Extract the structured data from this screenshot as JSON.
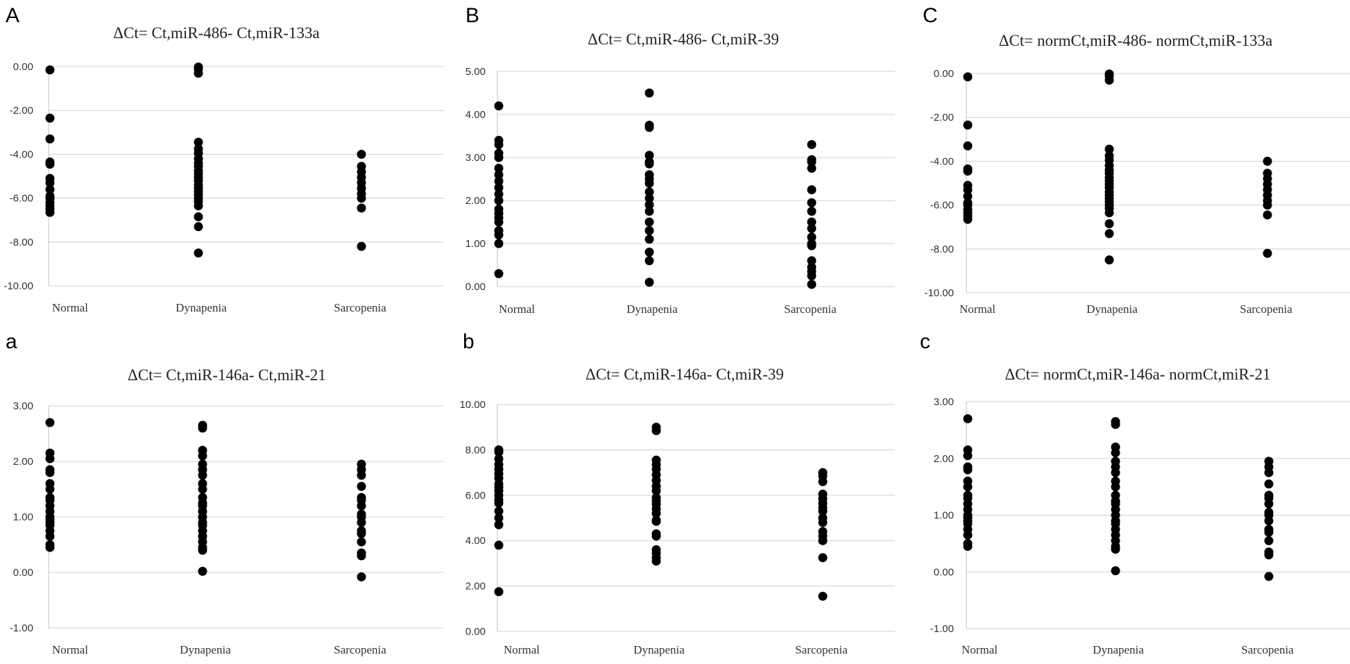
{
  "figure": {
    "panels_count": 6
  },
  "colors": {
    "marker": "#000000",
    "grid": "#d0d0d0",
    "axis": "#bfbfbf",
    "text": "#222222"
  },
  "chart_data": [
    {
      "letter": "A",
      "type": "scatter",
      "title": "ΔCt= Ct,miR-486- Ct,miR-133a",
      "categories": [
        "Normal",
        "Dynapenia",
        "Sarcopenia"
      ],
      "yticks": [
        "0.00",
        "-2.00",
        "-4.00",
        "-6.00",
        "-8.00",
        "-10.00"
      ],
      "ylim": [
        -10,
        0
      ],
      "grid": true,
      "series": [
        {
          "category": "Normal",
          "values": [
            -0.15,
            -2.35,
            -3.3,
            -4.35,
            -4.45,
            -5.1,
            -5.3,
            -5.6,
            -5.9,
            -6.0,
            -6.2,
            -6.35,
            -6.5,
            -6.65
          ]
        },
        {
          "category": "Dynapenia",
          "values": [
            -0.02,
            -0.12,
            -0.3,
            -3.45,
            -3.75,
            -3.95,
            -4.2,
            -4.4,
            -4.55,
            -4.75,
            -4.9,
            -5.05,
            -5.2,
            -5.4,
            -5.55,
            -5.7,
            -5.85,
            -6.0,
            -6.15,
            -6.35,
            -6.85,
            -7.3,
            -8.5
          ]
        },
        {
          "category": "Sarcopenia",
          "values": [
            -4.0,
            -4.55,
            -4.8,
            -5.05,
            -5.3,
            -5.55,
            -5.8,
            -6.0,
            -6.45,
            -8.2
          ]
        }
      ]
    },
    {
      "letter": "B",
      "type": "scatter",
      "title": "ΔCt= Ct,miR-486- Ct,miR-39",
      "categories": [
        "Normal",
        "Dynapenia",
        "Sarcopenia"
      ],
      "yticks": [
        "5.00",
        "4.00",
        "3.00",
        "2.00",
        "1.00",
        "0.00"
      ],
      "ylim": [
        0,
        5
      ],
      "grid": true,
      "series": [
        {
          "category": "Normal",
          "values": [
            4.2,
            3.4,
            3.3,
            3.1,
            3.0,
            2.75,
            2.6,
            2.45,
            2.3,
            2.15,
            2.0,
            1.8,
            1.7,
            1.6,
            1.5,
            1.3,
            1.2,
            1.0,
            0.3
          ]
        },
        {
          "category": "Dynapenia",
          "values": [
            4.5,
            3.75,
            3.7,
            3.05,
            2.9,
            2.85,
            2.6,
            2.5,
            2.4,
            2.2,
            2.05,
            1.9,
            1.75,
            1.5,
            1.3,
            1.1,
            0.8,
            0.6,
            0.1
          ]
        },
        {
          "category": "Sarcopenia",
          "values": [
            3.3,
            2.95,
            2.9,
            2.75,
            2.25,
            1.95,
            1.75,
            1.5,
            1.35,
            1.15,
            1.0,
            0.95,
            0.6,
            0.45,
            0.35,
            0.25,
            0.05
          ]
        }
      ]
    },
    {
      "letter": "C",
      "type": "scatter",
      "title": "ΔCt= normCt,miR-486- normCt,miR-133a",
      "categories": [
        "Normal",
        "Dynapenia",
        "Sarcopenia"
      ],
      "yticks": [
        "0.00",
        "-2.00",
        "-4.00",
        "-6.00",
        "-8.00",
        "-10.00"
      ],
      "ylim": [
        -10,
        0
      ],
      "grid": true,
      "series": [
        {
          "category": "Normal",
          "values": [
            -0.15,
            -2.35,
            -3.3,
            -4.35,
            -4.45,
            -5.1,
            -5.3,
            -5.6,
            -5.9,
            -6.0,
            -6.2,
            -6.35,
            -6.5,
            -6.65
          ]
        },
        {
          "category": "Dynapenia",
          "values": [
            -0.02,
            -0.12,
            -0.3,
            -3.45,
            -3.75,
            -3.95,
            -4.2,
            -4.4,
            -4.55,
            -4.75,
            -4.9,
            -5.05,
            -5.2,
            -5.4,
            -5.55,
            -5.7,
            -5.85,
            -6.0,
            -6.15,
            -6.35,
            -6.85,
            -7.3,
            -8.5
          ]
        },
        {
          "category": "Sarcopenia",
          "values": [
            -4.0,
            -4.55,
            -4.8,
            -5.05,
            -5.3,
            -5.55,
            -5.8,
            -6.0,
            -6.45,
            -8.2
          ]
        }
      ]
    },
    {
      "letter": "a",
      "type": "scatter",
      "title": "ΔCt= Ct,miR-146a- Ct,miR-21",
      "categories": [
        "Normal",
        "Dynapenia",
        "Sarcopenia"
      ],
      "yticks": [
        "3.00",
        "2.00",
        "1.00",
        "0.00",
        "-1.00"
      ],
      "ylim": [
        -1,
        3
      ],
      "grid": true,
      "series": [
        {
          "category": "Normal",
          "values": [
            2.7,
            2.15,
            2.05,
            1.85,
            1.8,
            1.6,
            1.5,
            1.35,
            1.3,
            1.2,
            1.1,
            1.0,
            0.95,
            0.9,
            0.85,
            0.75,
            0.65,
            0.5,
            0.45
          ]
        },
        {
          "category": "Dynapenia",
          "values": [
            2.65,
            2.6,
            2.2,
            2.1,
            1.95,
            1.85,
            1.75,
            1.6,
            1.5,
            1.35,
            1.25,
            1.2,
            1.1,
            1.0,
            0.9,
            0.85,
            0.75,
            0.65,
            0.55,
            0.45,
            0.4,
            0.02
          ]
        },
        {
          "category": "Sarcopenia",
          "values": [
            1.95,
            1.85,
            1.75,
            1.55,
            1.35,
            1.3,
            1.2,
            1.05,
            1.0,
            0.9,
            0.75,
            0.7,
            0.55,
            0.35,
            0.3,
            -0.08
          ]
        }
      ]
    },
    {
      "letter": "b",
      "type": "scatter",
      "title": "ΔCt= Ct,miR-146a- Ct,miR-39",
      "categories": [
        "Normal",
        "Dynapenia",
        "Sarcopenia"
      ],
      "yticks": [
        "10.00",
        "8.00",
        "6.00",
        "4.00",
        "2.00",
        "0.00"
      ],
      "ylim": [
        0,
        10
      ],
      "grid": true,
      "series": [
        {
          "category": "Normal",
          "values": [
            8.0,
            7.9,
            7.6,
            7.35,
            7.15,
            6.95,
            6.75,
            6.5,
            6.35,
            6.2,
            6.0,
            5.8,
            5.65,
            5.3,
            5.0,
            4.7,
            3.8,
            1.75
          ]
        },
        {
          "category": "Dynapenia",
          "values": [
            9.0,
            8.85,
            7.55,
            7.35,
            7.15,
            6.9,
            6.65,
            6.4,
            6.2,
            5.9,
            5.75,
            5.6,
            5.4,
            5.2,
            4.9,
            4.85,
            4.3,
            4.2,
            3.6,
            3.45,
            3.25,
            3.1
          ]
        },
        {
          "category": "Sarcopenia",
          "values": [
            7.0,
            6.85,
            6.6,
            6.05,
            5.85,
            5.65,
            5.45,
            5.3,
            5.0,
            4.8,
            4.4,
            4.2,
            4.0,
            3.25,
            1.55
          ]
        }
      ]
    },
    {
      "letter": "c",
      "type": "scatter",
      "title": "ΔCt= normCt,miR-146a- normCt,miR-21",
      "categories": [
        "Normal",
        "Dynapenia",
        "Sarcopenia"
      ],
      "yticks": [
        "3.00",
        "2.00",
        "1.00",
        "0.00",
        "-1.00"
      ],
      "ylim": [
        -1,
        3
      ],
      "grid": true,
      "series": [
        {
          "category": "Normal",
          "values": [
            2.7,
            2.15,
            2.05,
            1.85,
            1.8,
            1.6,
            1.5,
            1.35,
            1.3,
            1.2,
            1.1,
            1.0,
            0.95,
            0.9,
            0.85,
            0.75,
            0.65,
            0.5,
            0.45
          ]
        },
        {
          "category": "Dynapenia",
          "values": [
            2.65,
            2.6,
            2.2,
            2.1,
            1.95,
            1.85,
            1.75,
            1.6,
            1.5,
            1.35,
            1.25,
            1.2,
            1.1,
            1.0,
            0.9,
            0.85,
            0.75,
            0.65,
            0.55,
            0.45,
            0.4,
            0.02
          ]
        },
        {
          "category": "Sarcopenia",
          "values": [
            1.95,
            1.85,
            1.75,
            1.55,
            1.35,
            1.3,
            1.2,
            1.05,
            1.0,
            0.9,
            0.75,
            0.7,
            0.55,
            0.35,
            0.3,
            -0.08
          ]
        }
      ]
    }
  ]
}
